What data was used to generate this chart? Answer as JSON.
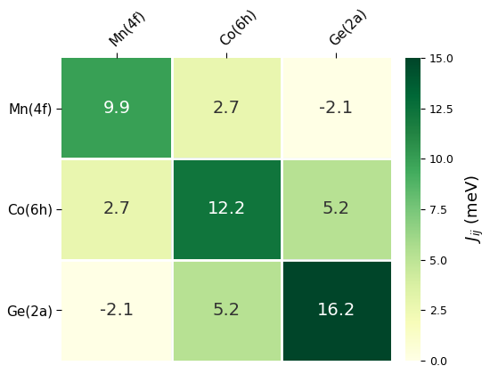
{
  "labels": [
    "Mn(4f)",
    "Co(6h)",
    "Ge(2a)"
  ],
  "matrix": [
    [
      9.9,
      2.7,
      -2.1
    ],
    [
      2.7,
      12.2,
      5.2
    ],
    [
      -2.1,
      5.2,
      16.2
    ]
  ],
  "cmap": "YlGn",
  "vmin": 0.0,
  "vmax": 15.0,
  "colorbar_ticks": [
    0.0,
    2.5,
    5.0,
    7.5,
    10.0,
    12.5,
    15.0
  ],
  "colorbar_label": "$J_{ij}$ (meV)",
  "text_threshold_white": 8.5,
  "font_size_annot": 14,
  "font_size_labels": 11,
  "font_size_cbar": 13,
  "background_color": "#ffffff",
  "figsize": [
    5.5,
    4.2
  ]
}
